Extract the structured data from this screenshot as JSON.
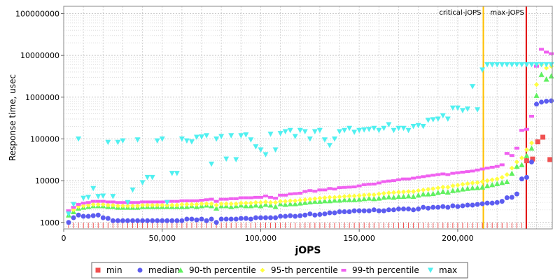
{
  "chart_data": {
    "type": "scatter",
    "ylabel": "Response time, usec",
    "xlabel": "jOPS",
    "y_scale": "log",
    "ylim": [
      700,
      150000000
    ],
    "xlim": [
      0,
      248000
    ],
    "grid": true,
    "legend_position": "bottom",
    "x_ticks": [
      {
        "value": 0,
        "label": "0"
      },
      {
        "value": 50000,
        "label": "50,000"
      },
      {
        "value": 100000,
        "label": "100,000"
      },
      {
        "value": 150000,
        "label": "150,000"
      },
      {
        "value": 200000,
        "label": "200,000"
      }
    ],
    "y_ticks": [
      {
        "value": 1000,
        "label": "1000"
      },
      {
        "value": 10000,
        "label": "10000"
      },
      {
        "value": 100000,
        "label": "100000"
      },
      {
        "value": 1000000,
        "label": "1000000"
      },
      {
        "value": 10000000,
        "label": "10000000"
      },
      {
        "value": 100000000,
        "label": "100000000"
      }
    ],
    "vertical_lines": [
      {
        "label": "critical-jOPS",
        "x": 213000,
        "color": "#ffc000"
      },
      {
        "label": "max-jOPS",
        "x": 234800,
        "color": "#e00000"
      }
    ],
    "series": [
      {
        "name": "min",
        "color": "#f05050",
        "marker": "square",
        "x": [
          235000,
          238000,
          240600,
          243200,
          246800
        ],
        "y": [
          30000,
          33000,
          85000,
          110000,
          32000
        ]
      },
      {
        "name": "median",
        "color": "#5c5cf0",
        "marker": "circle",
        "x": [
          2500,
          5000,
          7500,
          10000,
          12500,
          15000,
          17500,
          20000,
          22500,
          25000,
          27500,
          30000,
          32500,
          35000,
          37500,
          40000,
          42500,
          45000,
          47500,
          50000,
          52500,
          55000,
          57500,
          60000,
          62500,
          65000,
          67500,
          70000,
          72500,
          75000,
          77500,
          80000,
          82500,
          85000,
          87500,
          90000,
          92500,
          95000,
          97500,
          100000,
          102500,
          105000,
          107500,
          110000,
          112500,
          115000,
          117500,
          120000,
          122500,
          125000,
          127500,
          130000,
          132500,
          135000,
          137500,
          140000,
          142500,
          145000,
          147500,
          150000,
          152500,
          155000,
          157500,
          160000,
          162500,
          165000,
          167500,
          170000,
          172500,
          175000,
          177500,
          180000,
          182500,
          185000,
          187500,
          190000,
          192500,
          195000,
          197500,
          200000,
          202500,
          205000,
          207500,
          210000,
          212500,
          215000,
          217500,
          220000,
          222500,
          225000,
          227500,
          230000,
          232500,
          235000,
          237500,
          240000,
          242500,
          245000,
          247500
        ],
        "y": [
          1000,
          1300,
          1500,
          1400,
          1400,
          1450,
          1500,
          1300,
          1250,
          1100,
          1100,
          1100,
          1100,
          1100,
          1100,
          1100,
          1100,
          1100,
          1100,
          1100,
          1100,
          1100,
          1100,
          1100,
          1200,
          1200,
          1150,
          1200,
          1100,
          1200,
          1000,
          1200,
          1200,
          1200,
          1200,
          1250,
          1250,
          1200,
          1300,
          1300,
          1300,
          1300,
          1300,
          1400,
          1400,
          1450,
          1400,
          1450,
          1500,
          1600,
          1500,
          1550,
          1600,
          1700,
          1700,
          1800,
          1800,
          1800,
          1900,
          1900,
          1900,
          1900,
          2000,
          1900,
          1900,
          2000,
          2000,
          2100,
          2100,
          2100,
          2000,
          2100,
          2300,
          2200,
          2300,
          2300,
          2400,
          2300,
          2500,
          2400,
          2500,
          2600,
          2600,
          2700,
          2800,
          2900,
          2900,
          3000,
          3200,
          3900,
          4000,
          4800,
          11000,
          12000,
          28000,
          680000,
          760000,
          800000,
          820000
        ]
      },
      {
        "name": "90-th percentile",
        "color": "#60f060",
        "marker": "triangle-up",
        "x": [
          2500,
          5000,
          7500,
          10000,
          12500,
          15000,
          17500,
          20000,
          22500,
          25000,
          27500,
          30000,
          32500,
          35000,
          37500,
          40000,
          42500,
          45000,
          47500,
          50000,
          52500,
          55000,
          57500,
          60000,
          62500,
          65000,
          67500,
          70000,
          72500,
          75000,
          77500,
          80000,
          82500,
          85000,
          87500,
          90000,
          92500,
          95000,
          97500,
          100000,
          102500,
          105000,
          107500,
          110000,
          112500,
          115000,
          117500,
          120000,
          122500,
          125000,
          127500,
          130000,
          132500,
          135000,
          137500,
          140000,
          142500,
          145000,
          147500,
          150000,
          152500,
          155000,
          157500,
          160000,
          162500,
          165000,
          167500,
          170000,
          172500,
          175000,
          177500,
          180000,
          182500,
          185000,
          187500,
          190000,
          192500,
          195000,
          197500,
          200000,
          202500,
          205000,
          207500,
          210000,
          212500,
          215000,
          217500,
          220000,
          222500,
          225000,
          227500,
          230000,
          232500,
          235000,
          237500,
          240000,
          242500,
          245000,
          247500
        ],
        "y": [
          1500,
          1800,
          2200,
          2300,
          2400,
          2500,
          2500,
          2500,
          2400,
          2400,
          2300,
          2300,
          2300,
          2300,
          2300,
          2400,
          2400,
          2400,
          2400,
          2400,
          2400,
          2400,
          2400,
          2400,
          2400,
          2500,
          2400,
          2500,
          2600,
          2500,
          2200,
          2500,
          2500,
          2400,
          2500,
          2600,
          2500,
          2500,
          2600,
          2500,
          2700,
          2600,
          2400,
          2800,
          2700,
          2800,
          2800,
          2900,
          3000,
          3100,
          3200,
          3200,
          3300,
          3300,
          3400,
          3400,
          3500,
          3500,
          3500,
          3600,
          3700,
          3800,
          3700,
          3800,
          4000,
          4100,
          4000,
          4200,
          4200,
          4300,
          4200,
          4500,
          4800,
          4800,
          4900,
          5200,
          5500,
          5300,
          5800,
          6000,
          6300,
          6500,
          6700,
          6800,
          7000,
          7500,
          8000,
          8500,
          9000,
          9500,
          15000,
          22000,
          24000,
          40000,
          60000,
          1100000,
          3500000,
          2700000,
          3200000
        ]
      },
      {
        "name": "95-th percentile",
        "color": "#ffff40",
        "marker": "diamond",
        "x": [
          2500,
          5000,
          7500,
          10000,
          12500,
          15000,
          17500,
          20000,
          22500,
          25000,
          27500,
          30000,
          32500,
          35000,
          37500,
          40000,
          42500,
          45000,
          47500,
          50000,
          52500,
          55000,
          57500,
          60000,
          62500,
          65000,
          67500,
          70000,
          72500,
          75000,
          77500,
          80000,
          82500,
          85000,
          87500,
          90000,
          92500,
          95000,
          97500,
          100000,
          102500,
          105000,
          107500,
          110000,
          112500,
          115000,
          117500,
          120000,
          122500,
          125000,
          127500,
          130000,
          132500,
          135000,
          137500,
          140000,
          142500,
          145000,
          147500,
          150000,
          152500,
          155000,
          157500,
          160000,
          162500,
          165000,
          167500,
          170000,
          172500,
          175000,
          177500,
          180000,
          182500,
          185000,
          187500,
          190000,
          192500,
          195000,
          197500,
          200000,
          202500,
          205000,
          207500,
          210000,
          212500,
          215000,
          217500,
          220000,
          222500,
          225000,
          227500,
          230000,
          232500,
          235000,
          237500,
          240000,
          242500,
          245000,
          247500
        ],
        "y": [
          1700,
          2000,
          2400,
          2500,
          2600,
          2700,
          2700,
          2700,
          2600,
          2600,
          2500,
          2500,
          2500,
          2500,
          2500,
          2600,
          2600,
          2600,
          2600,
          2600,
          2600,
          2600,
          2600,
          2700,
          2700,
          2700,
          2700,
          2800,
          2800,
          2800,
          2600,
          2800,
          2800,
          2800,
          2800,
          2900,
          2900,
          2900,
          3000,
          3000,
          3100,
          3000,
          3000,
          3200,
          3200,
          3300,
          3300,
          3400,
          3500,
          3600,
          3700,
          3800,
          3900,
          4000,
          4000,
          4100,
          4200,
          4300,
          4300,
          4400,
          4500,
          4600,
          4600,
          4800,
          5000,
          5100,
          5200,
          5300,
          5400,
          5500,
          5500,
          5800,
          6000,
          6200,
          6400,
          6700,
          7000,
          7000,
          7500,
          7800,
          8200,
          8500,
          8800,
          9000,
          9500,
          10000,
          10500,
          11000,
          12000,
          14000,
          20000,
          28000,
          35000,
          55000,
          80000,
          2000000,
          6000000,
          5000000,
          5500000
        ]
      },
      {
        "name": "99-th percentile",
        "color": "#f060f0",
        "marker": "dash",
        "x": [
          2500,
          5000,
          7500,
          10000,
          12500,
          15000,
          17500,
          20000,
          22500,
          25000,
          27500,
          30000,
          32500,
          35000,
          37500,
          40000,
          42500,
          45000,
          47500,
          50000,
          52500,
          55000,
          57500,
          60000,
          62500,
          65000,
          67500,
          70000,
          72500,
          75000,
          77500,
          80000,
          82500,
          85000,
          87500,
          90000,
          92500,
          95000,
          97500,
          100000,
          102500,
          105000,
          107500,
          110000,
          112500,
          115000,
          117500,
          120000,
          122500,
          125000,
          127500,
          130000,
          132500,
          135000,
          137500,
          140000,
          142500,
          145000,
          147500,
          150000,
          152500,
          155000,
          157500,
          160000,
          162500,
          165000,
          167500,
          170000,
          172500,
          175000,
          177500,
          180000,
          182500,
          185000,
          187500,
          190000,
          192500,
          195000,
          197500,
          200000,
          202500,
          205000,
          207500,
          210000,
          212500,
          215000,
          217500,
          220000,
          222500,
          225000,
          227500,
          230000,
          232500,
          235000,
          237500,
          240000,
          242500,
          245000,
          247500
        ],
        "y": [
          1900,
          2300,
          2700,
          2900,
          3000,
          3200,
          3200,
          3200,
          3100,
          3100,
          3000,
          3000,
          3000,
          3000,
          3000,
          3100,
          3100,
          3100,
          3100,
          3100,
          3200,
          3200,
          3200,
          3300,
          3300,
          3300,
          3300,
          3400,
          3500,
          3600,
          3200,
          3600,
          3600,
          3700,
          3700,
          3900,
          3900,
          3900,
          4000,
          4000,
          4300,
          4000,
          3800,
          4500,
          4500,
          4800,
          4900,
          5000,
          5500,
          5800,
          5600,
          6000,
          6000,
          6500,
          6300,
          6800,
          6900,
          7000,
          7100,
          7500,
          8000,
          8200,
          8300,
          8800,
          9500,
          9800,
          10000,
          10500,
          11000,
          11000,
          11500,
          12000,
          12500,
          13000,
          13500,
          14000,
          14500,
          14000,
          15000,
          15500,
          16000,
          16500,
          17000,
          18000,
          19000,
          20000,
          21000,
          22000,
          24000,
          45000,
          40000,
          60000,
          160000,
          170000,
          350000,
          5500000,
          14000000,
          12000000,
          11000000
        ]
      },
      {
        "name": "max",
        "color": "#50f0f0",
        "marker": "triangle-down",
        "x": [
          2500,
          5000,
          7500,
          10000,
          12500,
          15000,
          17500,
          20000,
          22500,
          25000,
          27500,
          30000,
          32500,
          35000,
          37500,
          40000,
          42500,
          45000,
          47500,
          50000,
          52500,
          55000,
          57500,
          60000,
          62500,
          65000,
          67500,
          70000,
          72500,
          75000,
          77500,
          80000,
          82500,
          85000,
          87500,
          90000,
          92500,
          95000,
          97500,
          100000,
          102500,
          105000,
          107500,
          110000,
          112500,
          115000,
          117500,
          120000,
          122500,
          125000,
          127500,
          130000,
          132500,
          135000,
          137500,
          140000,
          142500,
          145000,
          147500,
          150000,
          152500,
          155000,
          157500,
          160000,
          162500,
          165000,
          167500,
          170000,
          172500,
          175000,
          177500,
          180000,
          182500,
          185000,
          187500,
          190000,
          192500,
          195000,
          197500,
          200000,
          202500,
          205000,
          207500,
          210000,
          212500,
          215000,
          217500,
          220000,
          222500,
          225000,
          227500,
          230000,
          232500,
          235000,
          237500,
          240000,
          242500,
          245000,
          247500
        ],
        "y": [
          1600,
          2700,
          100000,
          3800,
          4000,
          6500,
          4200,
          4300,
          83000,
          4200,
          83000,
          90000,
          3000,
          6000,
          95000,
          9000,
          12000,
          12000,
          90000,
          100000,
          3000,
          15000,
          15000,
          100000,
          90000,
          85000,
          110000,
          112000,
          120000,
          25000,
          100000,
          115000,
          33000,
          120000,
          32000,
          120000,
          125000,
          95000,
          65000,
          55000,
          42000,
          130000,
          55000,
          135000,
          150000,
          160000,
          115000,
          160000,
          150000,
          100000,
          150000,
          160000,
          95000,
          70000,
          100000,
          150000,
          160000,
          180000,
          145000,
          160000,
          165000,
          170000,
          180000,
          160000,
          180000,
          220000,
          160000,
          180000,
          180000,
          160000,
          200000,
          210000,
          200000,
          280000,
          290000,
          300000,
          360000,
          300000,
          550000,
          550000,
          480000,
          520000,
          1800000,
          500000,
          4500000,
          6000000,
          6000000,
          6000000,
          6000000,
          6000000,
          6000000,
          6000000,
          6000000,
          6000000,
          6000000,
          6000000,
          6000000,
          6000000,
          6000000
        ]
      }
    ]
  }
}
